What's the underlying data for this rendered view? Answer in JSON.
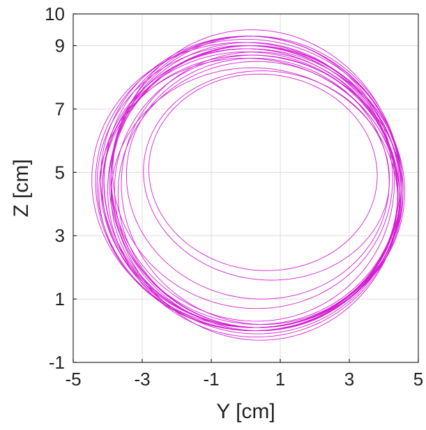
{
  "chart_data": {
    "type": "line",
    "title": "",
    "xlabel": "Y [cm]",
    "ylabel": "Z [cm]",
    "xlim": [
      -5,
      5
    ],
    "ylim": [
      -1,
      10
    ],
    "xticks": [
      -5,
      -3,
      -1,
      1,
      3,
      5
    ],
    "yticks": [
      -1,
      1,
      3,
      5,
      7,
      9,
      10
    ],
    "grid": true,
    "legend": "none",
    "line_color": "#d21ed2",
    "series": [
      {
        "description_free_orbit": true,
        "y": [
          0.2,
          4.3,
          0.2,
          -4.2,
          0.2
        ],
        "z": [
          9.2,
          4.5,
          0.2,
          4.4,
          9.2
        ]
      }
    ],
    "orbits": [
      {
        "cy": 0.15,
        "cz": 4.7,
        "ry": 4.35,
        "rz": 4.6,
        "tilt": 0.05
      },
      {
        "cy": 0.25,
        "cz": 4.6,
        "ry": 4.2,
        "rz": 4.4,
        "tilt": 0.04
      },
      {
        "cy": 0.1,
        "cz": 4.5,
        "ry": 4.4,
        "rz": 4.5,
        "tilt": 0.06
      },
      {
        "cy": 0.3,
        "cz": 4.4,
        "ry": 4.1,
        "rz": 4.3,
        "tilt": 0.03
      },
      {
        "cy": 0.2,
        "cz": 4.6,
        "ry": 4.3,
        "rz": 4.7,
        "tilt": 0.05
      },
      {
        "cy": 0.15,
        "cz": 4.5,
        "ry": 4.25,
        "rz": 4.4,
        "tilt": 0.07
      },
      {
        "cy": 0.35,
        "cz": 4.3,
        "ry": 4.05,
        "rz": 4.2,
        "tilt": 0.02
      },
      {
        "cy": 0.1,
        "cz": 4.6,
        "ry": 4.45,
        "rz": 4.6,
        "tilt": 0.04
      },
      {
        "cy": 0.25,
        "cz": 4.5,
        "ry": 4.15,
        "rz": 4.5,
        "tilt": 0.06
      },
      {
        "cy": 0.2,
        "cz": 4.4,
        "ry": 4.35,
        "rz": 4.3,
        "tilt": 0.05
      },
      {
        "cy": 0.3,
        "cz": 4.7,
        "ry": 4.2,
        "rz": 4.6,
        "tilt": 0.03
      },
      {
        "cy": 0.15,
        "cz": 4.4,
        "ry": 4.3,
        "rz": 4.4,
        "tilt": 0.06
      },
      {
        "cy": 0.2,
        "cz": 4.8,
        "ry": 4.1,
        "rz": 4.5,
        "tilt": 0.04
      },
      {
        "cy": 0.4,
        "cz": 4.5,
        "ry": 4.0,
        "rz": 4.3,
        "tilt": 0.05
      },
      {
        "cy": 0.05,
        "cz": 4.6,
        "ry": 4.5,
        "rz": 4.5,
        "tilt": 0.07
      },
      {
        "cy": 0.25,
        "cz": 4.4,
        "ry": 4.25,
        "rz": 4.6,
        "tilt": 0.02
      },
      {
        "cy": 0.5,
        "cz": 5.0,
        "ry": 3.3,
        "rz": 3.1,
        "tilt": 0.08
      },
      {
        "cy": 0.6,
        "cz": 4.9,
        "ry": 3.55,
        "rz": 3.3,
        "tilt": 0.1
      },
      {
        "cy": 0.35,
        "cz": 4.8,
        "ry": 3.8,
        "rz": 3.8,
        "tilt": 0.06
      },
      {
        "cy": 0.2,
        "cz": 4.9,
        "ry": 4.05,
        "rz": 4.2,
        "tilt": 0.05
      },
      {
        "cy": 0.3,
        "cz": 4.6,
        "ry": 4.2,
        "rz": 4.9,
        "tilt": 0.04
      },
      {
        "cy": 0.1,
        "cz": 4.3,
        "ry": 4.35,
        "rz": 4.3,
        "tilt": 0.06
      },
      {
        "cy": 0.25,
        "cz": 4.2,
        "ry": 4.15,
        "rz": 4.1,
        "tilt": 0.03
      },
      {
        "cy": 0.2,
        "cz": 4.5,
        "ry": 4.4,
        "rz": 4.4,
        "tilt": 0.05
      }
    ]
  }
}
